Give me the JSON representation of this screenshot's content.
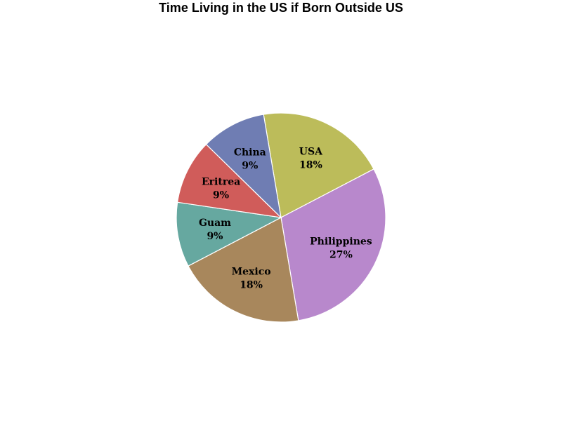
{
  "chart_data": {
    "type": "pie",
    "title": "Time Living in the US if Born Outside US",
    "slices": [
      {
        "name": "USA",
        "label": "18%",
        "value": 2,
        "color": "#bcbc5a"
      },
      {
        "name": "Philippines",
        "label": "27%",
        "value": 3,
        "color": "#b888cc"
      },
      {
        "name": "Mexico",
        "label": "18%",
        "value": 2,
        "color": "#a8875c"
      },
      {
        "name": "Guam",
        "label": "9%",
        "value": 1,
        "color": "#66a8a0"
      },
      {
        "name": "Eritrea",
        "label": "9%",
        "value": 1,
        "color": "#d05c5a"
      },
      {
        "name": "China",
        "label": "9%",
        "value": 1,
        "color": "#6f7db3"
      }
    ],
    "direction": "clockwise",
    "legend": "none"
  }
}
